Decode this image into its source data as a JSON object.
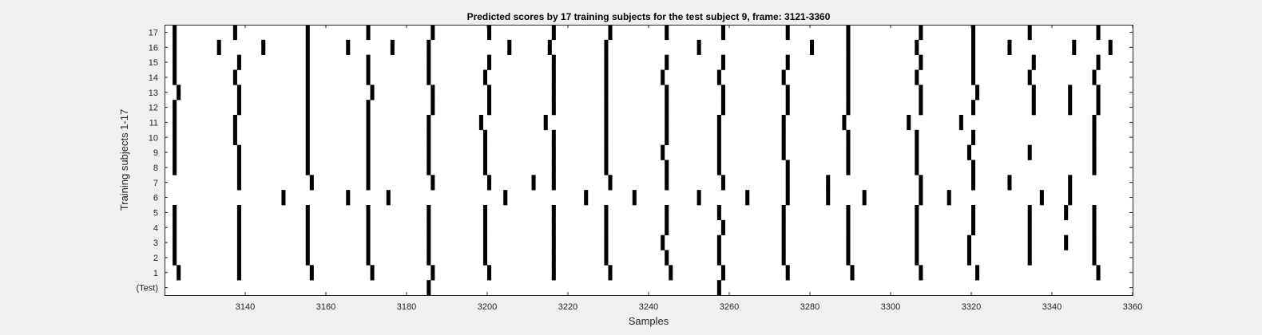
{
  "chart_data": {
    "type": "heatmap",
    "title": "Predicted scores by 17 training subjects for the test subject 9, frame: 3121-3360",
    "xlabel": "Samples",
    "ylabel": "Training subjects 1-17",
    "xlim": [
      3121,
      3360
    ],
    "xticks": [
      3140,
      3160,
      3180,
      3200,
      3220,
      3240,
      3260,
      3280,
      3300,
      3320,
      3340,
      3360
    ],
    "rows": [
      {
        "label": "17",
        "marks": [
          3123,
          3138,
          3156,
          3171,
          3187,
          3201,
          3217,
          3231,
          3245,
          3259,
          3275,
          3290,
          3308,
          3321,
          3335,
          3352
        ]
      },
      {
        "label": "16",
        "marks": [
          3123,
          3134,
          3145,
          3156,
          3166,
          3177,
          3186,
          3206,
          3216,
          3230,
          3253,
          3281,
          3290,
          3307,
          3321,
          3330,
          3346,
          3355
        ]
      },
      {
        "label": "15",
        "marks": [
          3123,
          3139,
          3156,
          3171,
          3186,
          3201,
          3217,
          3230,
          3245,
          3259,
          3275,
          3290,
          3308,
          3321,
          3336,
          3352
        ]
      },
      {
        "label": "14",
        "marks": [
          3123,
          3138,
          3156,
          3171,
          3186,
          3200,
          3217,
          3230,
          3244,
          3258,
          3274,
          3290,
          3307,
          3321,
          3335,
          3351
        ]
      },
      {
        "label": "13",
        "marks": [
          3124,
          3139,
          3156,
          3172,
          3187,
          3201,
          3217,
          3230,
          3245,
          3259,
          3275,
          3290,
          3308,
          3322,
          3336,
          3345,
          3352
        ]
      },
      {
        "label": "12",
        "marks": [
          3123,
          3139,
          3156,
          3171,
          3187,
          3201,
          3217,
          3230,
          3245,
          3259,
          3275,
          3290,
          3308,
          3321,
          3336,
          3345,
          3352
        ]
      },
      {
        "label": "11",
        "marks": [
          3123,
          3138,
          3156,
          3171,
          3186,
          3199,
          3215,
          3230,
          3245,
          3258,
          3274,
          3289,
          3305,
          3318,
          3351
        ]
      },
      {
        "label": "10",
        "marks": [
          3123,
          3138,
          3156,
          3171,
          3186,
          3200,
          3217,
          3230,
          3245,
          3258,
          3274,
          3290,
          3307,
          3321,
          3351
        ]
      },
      {
        "label": "9",
        "marks": [
          3123,
          3139,
          3156,
          3171,
          3186,
          3200,
          3217,
          3230,
          3244,
          3258,
          3274,
          3290,
          3307,
          3320,
          3335,
          3351
        ]
      },
      {
        "label": "8",
        "marks": [
          3123,
          3139,
          3156,
          3171,
          3186,
          3200,
          3217,
          3230,
          3245,
          3258,
          3275,
          3290,
          3307,
          3321,
          3351
        ]
      },
      {
        "label": "7",
        "marks": [
          3139,
          3157,
          3171,
          3187,
          3201,
          3212,
          3217,
          3231,
          3245,
          3259,
          3275,
          3285,
          3308,
          3321,
          3330,
          3345
        ]
      },
      {
        "label": "6",
        "marks": [
          3150,
          3166,
          3176,
          3205,
          3225,
          3237,
          3253,
          3265,
          3275,
          3285,
          3294,
          3308,
          3315,
          3338,
          3345
        ]
      },
      {
        "label": "5",
        "marks": [
          3123,
          3139,
          3156,
          3171,
          3186,
          3200,
          3217,
          3230,
          3245,
          3258,
          3274,
          3290,
          3307,
          3321,
          3335,
          3344,
          3351
        ]
      },
      {
        "label": "4",
        "marks": [
          3123,
          3139,
          3156,
          3171,
          3186,
          3200,
          3217,
          3230,
          3245,
          3259,
          3274,
          3290,
          3307,
          3321,
          3335,
          3351
        ]
      },
      {
        "label": "3",
        "marks": [
          3123,
          3139,
          3156,
          3171,
          3186,
          3200,
          3217,
          3230,
          3244,
          3258,
          3274,
          3290,
          3307,
          3320,
          3335,
          3344,
          3351
        ]
      },
      {
        "label": "2",
        "marks": [
          3123,
          3139,
          3156,
          3171,
          3186,
          3200,
          3217,
          3230,
          3245,
          3258,
          3274,
          3290,
          3307,
          3320,
          3335,
          3351
        ]
      },
      {
        "label": "1",
        "marks": [
          3124,
          3139,
          3157,
          3172,
          3187,
          3201,
          3217,
          3231,
          3246,
          3259,
          3275,
          3291,
          3308,
          3322,
          3352
        ]
      },
      {
        "label": "(Test)",
        "marks": [
          3186,
          3258
        ]
      }
    ],
    "cell_color": "#000000",
    "background_color": "#ffffff",
    "figure_background": "#f0f0f0",
    "grid": false,
    "legend": "none"
  }
}
